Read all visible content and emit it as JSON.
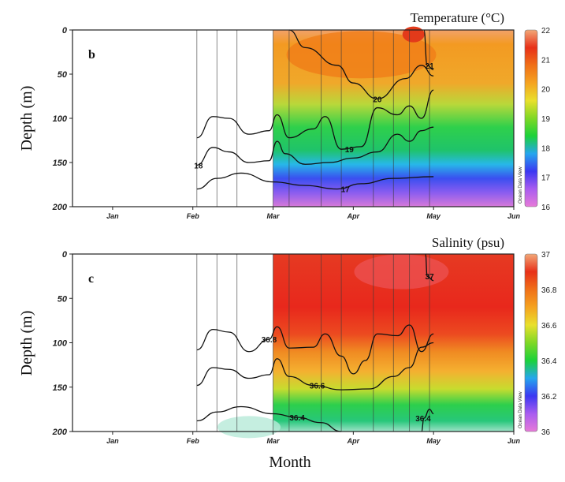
{
  "figure": {
    "xlabel": "Month"
  },
  "chart_data": [
    {
      "type": "heatmap",
      "panel_label": "b",
      "title": "Temperature (°C)",
      "ylabel": "Depth (m)",
      "watermark": "Ocean Data View",
      "x_ticks": [
        "Jan",
        "Feb",
        "Mar",
        "Apr",
        "May",
        "Jun"
      ],
      "y_ticks": [
        0,
        50,
        100,
        150,
        200
      ],
      "ylim": [
        200,
        0
      ],
      "y_reversed": true,
      "data_start": "Mar",
      "colorbar": {
        "min": 16,
        "max": 22,
        "ticks": [
          16,
          17,
          18,
          19,
          20,
          21,
          22
        ],
        "colors": [
          "#e77ad8",
          "#a95cf0",
          "#3b38f2",
          "#25a6ee",
          "#1bd23a",
          "#7fd825",
          "#e9e02c",
          "#f5a320",
          "#f07018",
          "#e83018",
          "#f2a878"
        ]
      },
      "profile_months": [
        2.05,
        2.3,
        2.55,
        3.0,
        3.2,
        3.6,
        3.85,
        4.25,
        4.5,
        4.7,
        4.95
      ],
      "isolines": [
        {
          "value": 17,
          "label": "17",
          "label_at": 3.9,
          "points": [
            [
              2.05,
              180
            ],
            [
              2.3,
              168
            ],
            [
              2.6,
              162
            ],
            [
              3.0,
              172
            ],
            [
              3.4,
              176
            ],
            [
              3.8,
              180
            ],
            [
              4.1,
              174
            ],
            [
              4.5,
              168
            ],
            [
              5.0,
              166
            ]
          ]
        },
        {
          "value": 18,
          "label": "18",
          "label_at": 2.07,
          "points": [
            [
              2.05,
              153
            ],
            [
              2.25,
              133
            ],
            [
              2.45,
              138
            ],
            [
              2.7,
              150
            ],
            [
              2.95,
              148
            ],
            [
              3.05,
              126
            ],
            [
              3.15,
              140
            ],
            [
              3.4,
              152
            ],
            [
              3.7,
              150
            ],
            [
              4.0,
              145
            ],
            [
              4.3,
              138
            ],
            [
              4.55,
              118
            ],
            [
              4.7,
              126
            ],
            [
              4.85,
              114
            ],
            [
              5.0,
              110
            ]
          ]
        },
        {
          "value": 19,
          "label": "19",
          "label_at": 3.95,
          "points": [
            [
              2.05,
              122
            ],
            [
              2.25,
              98
            ],
            [
              2.45,
              100
            ],
            [
              2.7,
              118
            ],
            [
              2.95,
              114
            ],
            [
              3.05,
              96
            ],
            [
              3.2,
              122
            ],
            [
              3.5,
              112
            ],
            [
              3.65,
              98
            ],
            [
              3.85,
              135
            ],
            [
              4.1,
              132
            ],
            [
              4.3,
              88
            ],
            [
              4.55,
              96
            ],
            [
              4.7,
              86
            ],
            [
              4.85,
              100
            ],
            [
              5.0,
              68
            ]
          ]
        },
        {
          "value": 20,
          "label": "20",
          "label_at": 4.3,
          "points": [
            [
              3.2,
              0
            ],
            [
              3.4,
              20
            ],
            [
              3.8,
              40
            ],
            [
              4.0,
              60
            ],
            [
              4.3,
              78
            ],
            [
              4.65,
              55
            ],
            [
              4.85,
              40
            ],
            [
              5.0,
              52
            ]
          ]
        },
        {
          "value": 21,
          "label": "21",
          "label_at": 4.95,
          "points": [
            [
              4.88,
              0
            ],
            [
              4.92,
              40
            ],
            [
              5.0,
              45
            ]
          ]
        }
      ]
    },
    {
      "type": "heatmap",
      "panel_label": "c",
      "title": "Salinity (psu)",
      "ylabel": "Depth (m)",
      "watermark": "Ocean Data View",
      "x_ticks": [
        "Jan",
        "Feb",
        "Mar",
        "Apr",
        "May",
        "Jun"
      ],
      "y_ticks": [
        0,
        50,
        100,
        150,
        200
      ],
      "ylim": [
        200,
        0
      ],
      "y_reversed": true,
      "data_start": "Mar",
      "colorbar": {
        "min": 36,
        "max": 37,
        "ticks": [
          36,
          36.2,
          36.4,
          36.6,
          36.8,
          37
        ],
        "colors": [
          "#e77ad8",
          "#a95cf0",
          "#3b38f2",
          "#25a6ee",
          "#1bd23a",
          "#7fd825",
          "#e9e02c",
          "#f5a320",
          "#f07018",
          "#e83018",
          "#f2a878"
        ]
      },
      "profile_months": [
        2.05,
        2.3,
        2.55,
        3.0,
        3.2,
        3.6,
        3.85,
        4.25,
        4.5,
        4.7,
        4.95
      ],
      "isolines": [
        {
          "value": 36.4,
          "label": "36.4",
          "label_at": 3.3,
          "points": [
            [
              2.05,
              188
            ],
            [
              2.3,
              178
            ],
            [
              2.6,
              172
            ],
            [
              3.0,
              180
            ],
            [
              3.3,
              184
            ],
            [
              3.6,
              190
            ],
            [
              3.85,
              200
            ]
          ]
        },
        {
          "value": 36.4,
          "label": "36.4",
          "label_at": 4.87,
          "points": [
            [
              4.85,
              200
            ],
            [
              4.88,
              185
            ],
            [
              4.95,
              175
            ],
            [
              5.0,
              180
            ]
          ]
        },
        {
          "value": 36.6,
          "label": "36.6",
          "label_at": 3.55,
          "points": [
            [
              2.05,
              148
            ],
            [
              2.25,
              128
            ],
            [
              2.45,
              130
            ],
            [
              2.7,
              140
            ],
            [
              2.95,
              136
            ],
            [
              3.05,
              118
            ],
            [
              3.2,
              138
            ],
            [
              3.5,
              148
            ],
            [
              3.85,
              153
            ],
            [
              4.2,
              152
            ],
            [
              4.5,
              138
            ],
            [
              4.7,
              128
            ],
            [
              4.85,
              105
            ],
            [
              5.0,
              100
            ]
          ]
        },
        {
          "value": 36.8,
          "label": "36.8",
          "label_at": 2.95,
          "points": [
            [
              2.05,
              108
            ],
            [
              2.25,
              85
            ],
            [
              2.45,
              88
            ],
            [
              2.7,
              110
            ],
            [
              2.95,
              96
            ],
            [
              3.05,
              82
            ],
            [
              3.2,
              106
            ],
            [
              3.5,
              105
            ],
            [
              3.65,
              90
            ],
            [
              3.85,
              115
            ],
            [
              4.0,
              135
            ],
            [
              4.15,
              120
            ],
            [
              4.3,
              90
            ],
            [
              4.55,
              92
            ],
            [
              4.7,
              80
            ],
            [
              4.85,
              110
            ],
            [
              5.0,
              90
            ]
          ]
        },
        {
          "value": 37,
          "label": "37",
          "label_at": 4.95,
          "points": [
            [
              4.9,
              0
            ],
            [
              4.92,
              25
            ],
            [
              5.0,
              30
            ]
          ]
        }
      ]
    }
  ]
}
